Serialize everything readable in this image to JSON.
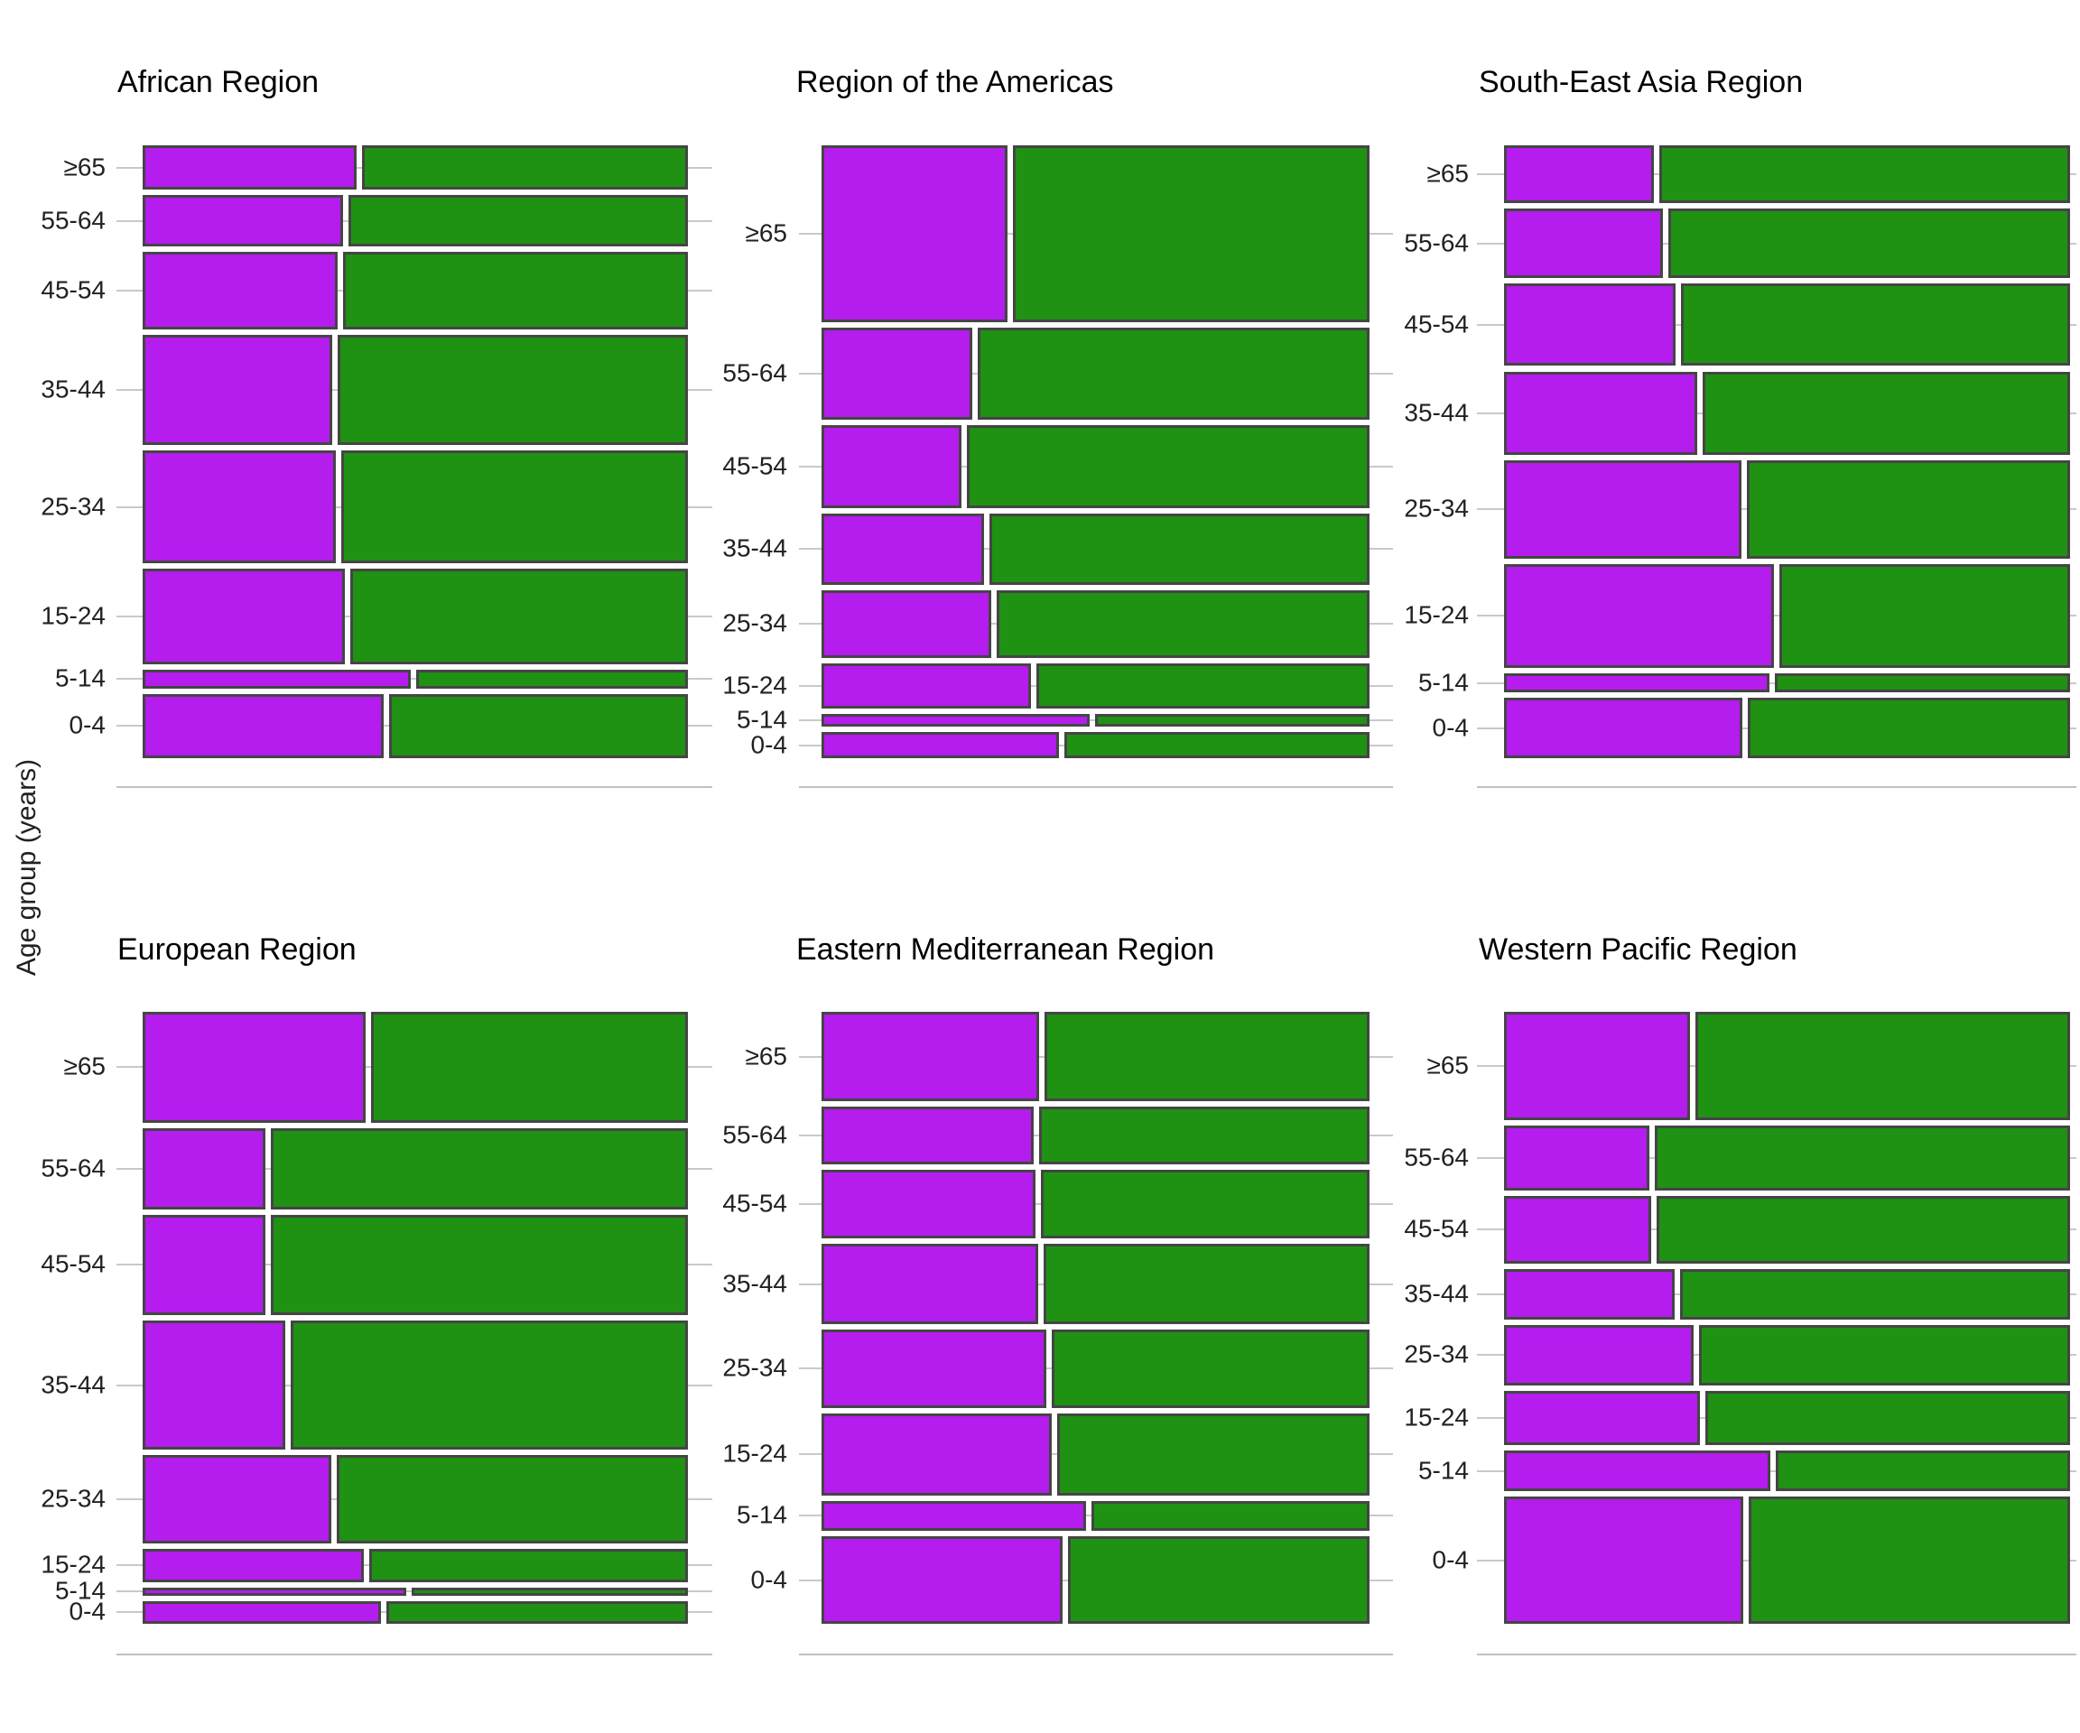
{
  "chart_data": {
    "type": "mosaic",
    "ylabel": "Age group (years)",
    "age_groups": [
      "≥65",
      "55-64",
      "45-54",
      "35-44",
      "25-34",
      "15-24",
      "5-14",
      "0-4"
    ],
    "layout": {
      "grid": "2 rows x 3 columns",
      "gridlines": "at row centers, light gray",
      "legend": "none"
    },
    "colors": {
      "purple": "#B51CEE",
      "green": "#1F9113",
      "segment_border": "#454545",
      "gridline": "#C9C9C9",
      "baseline": "#C0C0C0",
      "tick_text": "#212121",
      "title_text": "#000000"
    },
    "panels": [
      {
        "title": "African Region",
        "rows": [
          {
            "age": "≥65",
            "share": 0.077,
            "purple_fraction": 0.397
          },
          {
            "age": "55-64",
            "share": 0.09,
            "purple_fraction": 0.372
          },
          {
            "age": "45-54",
            "share": 0.134,
            "purple_fraction": 0.361
          },
          {
            "age": "35-44",
            "share": 0.192,
            "purple_fraction": 0.352
          },
          {
            "age": "25-34",
            "share": 0.195,
            "purple_fraction": 0.358
          },
          {
            "age": "15-24",
            "share": 0.166,
            "purple_fraction": 0.374
          },
          {
            "age": "5-14",
            "share": 0.033,
            "purple_fraction": 0.496
          },
          {
            "age": "0-4",
            "share": 0.112,
            "purple_fraction": 0.447
          }
        ]
      },
      {
        "title": "Region of the Americas",
        "rows": [
          {
            "age": "≥65",
            "share": 0.308,
            "purple_fraction": 0.343
          },
          {
            "age": "55-64",
            "share": 0.16,
            "purple_fraction": 0.278
          },
          {
            "age": "45-54",
            "share": 0.144,
            "purple_fraction": 0.258
          },
          {
            "age": "35-44",
            "share": 0.124,
            "purple_fraction": 0.299
          },
          {
            "age": "25-34",
            "share": 0.118,
            "purple_fraction": 0.313
          },
          {
            "age": "15-24",
            "share": 0.078,
            "purple_fraction": 0.386
          },
          {
            "age": "5-14",
            "share": 0.023,
            "purple_fraction": 0.494
          },
          {
            "age": "0-4",
            "share": 0.045,
            "purple_fraction": 0.438
          }
        ]
      },
      {
        "title": "South-East Asia Region",
        "rows": [
          {
            "age": "≥65",
            "share": 0.1,
            "purple_fraction": 0.267
          },
          {
            "age": "55-64",
            "share": 0.122,
            "purple_fraction": 0.283
          },
          {
            "age": "45-54",
            "share": 0.143,
            "purple_fraction": 0.306
          },
          {
            "age": "35-44",
            "share": 0.145,
            "purple_fraction": 0.344
          },
          {
            "age": "25-34",
            "share": 0.171,
            "purple_fraction": 0.424
          },
          {
            "age": "15-24",
            "share": 0.181,
            "purple_fraction": 0.482
          },
          {
            "age": "5-14",
            "share": 0.033,
            "purple_fraction": 0.474
          },
          {
            "age": "0-4",
            "share": 0.105,
            "purple_fraction": 0.425
          }
        ]
      },
      {
        "title": "European Region",
        "rows": [
          {
            "age": "≥65",
            "share": 0.193,
            "purple_fraction": 0.413
          },
          {
            "age": "55-64",
            "share": 0.142,
            "purple_fraction": 0.227
          },
          {
            "age": "45-54",
            "share": 0.174,
            "purple_fraction": 0.228
          },
          {
            "age": "35-44",
            "share": 0.226,
            "purple_fraction": 0.264
          },
          {
            "age": "25-34",
            "share": 0.153,
            "purple_fraction": 0.35
          },
          {
            "age": "15-24",
            "share": 0.058,
            "purple_fraction": 0.409
          },
          {
            "age": "5-14",
            "share": 0.014,
            "purple_fraction": 0.488
          },
          {
            "age": "0-4",
            "share": 0.04,
            "purple_fraction": 0.441
          }
        ]
      },
      {
        "title": "Eastern Mediterranean Region",
        "rows": [
          {
            "age": "≥65",
            "share": 0.156,
            "purple_fraction": 0.401
          },
          {
            "age": "55-64",
            "share": 0.101,
            "purple_fraction": 0.391
          },
          {
            "age": "45-54",
            "share": 0.119,
            "purple_fraction": 0.395
          },
          {
            "age": "35-44",
            "share": 0.14,
            "purple_fraction": 0.399
          },
          {
            "age": "25-34",
            "share": 0.136,
            "purple_fraction": 0.414
          },
          {
            "age": "15-24",
            "share": 0.143,
            "purple_fraction": 0.425
          },
          {
            "age": "5-14",
            "share": 0.053,
            "purple_fraction": 0.487
          },
          {
            "age": "0-4",
            "share": 0.152,
            "purple_fraction": 0.444
          }
        ]
      },
      {
        "title": "Western Pacific Region",
        "rows": [
          {
            "age": "≥65",
            "share": 0.189,
            "purple_fraction": 0.332
          },
          {
            "age": "55-64",
            "share": 0.112,
            "purple_fraction": 0.26
          },
          {
            "age": "45-54",
            "share": 0.118,
            "purple_fraction": 0.262
          },
          {
            "age": "35-44",
            "share": 0.088,
            "purple_fraction": 0.304
          },
          {
            "age": "25-34",
            "share": 0.105,
            "purple_fraction": 0.338
          },
          {
            "age": "15-24",
            "share": 0.095,
            "purple_fraction": 0.349
          },
          {
            "age": "5-14",
            "share": 0.071,
            "purple_fraction": 0.475
          },
          {
            "age": "0-4",
            "share": 0.221,
            "purple_fraction": 0.426
          }
        ]
      }
    ]
  }
}
